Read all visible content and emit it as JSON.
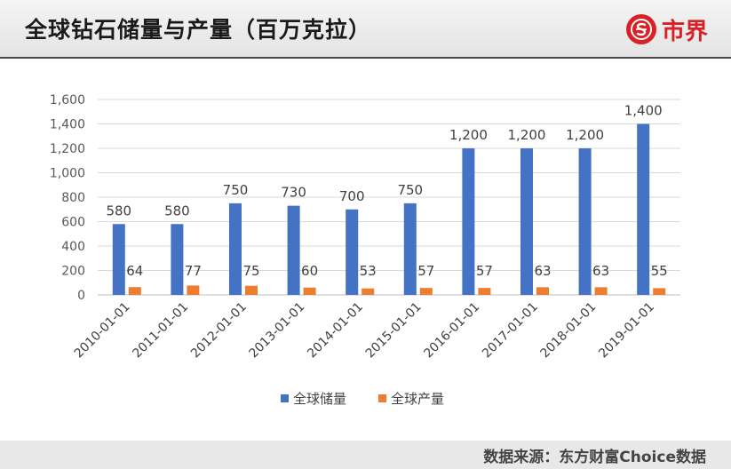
{
  "header": {
    "title": "全球钻石储量与产量（百万克拉）",
    "brand": "市界"
  },
  "footer": {
    "source": "数据来源：东方财富Choice数据"
  },
  "colors": {
    "reserves": "#4472c4",
    "production": "#ed7d31",
    "brand": "#d92024"
  },
  "chart_data": {
    "type": "bar",
    "title": "全球钻石储量与产量（百万克拉）",
    "categories": [
      "2010-01-01",
      "2011-01-01",
      "2012-01-01",
      "2013-01-01",
      "2014-01-01",
      "2015-01-01",
      "2016-01-01",
      "2017-01-01",
      "2018-01-01",
      "2019-01-01"
    ],
    "series": [
      {
        "name": "全球储量",
        "values": [
          580,
          580,
          750,
          730,
          700,
          750,
          1200,
          1200,
          1200,
          1400
        ]
      },
      {
        "name": "全球产量",
        "values": [
          64,
          77,
          75,
          60,
          53,
          57,
          57,
          63,
          63,
          55
        ]
      }
    ],
    "ylim": [
      0,
      1600
    ],
    "yticks": [
      0,
      200,
      400,
      600,
      800,
      1000,
      1200,
      1400,
      1600
    ],
    "ytick_labels": [
      "0",
      "200",
      "400",
      "600",
      "800",
      "1,000",
      "1,200",
      "1,400",
      "1,600"
    ],
    "grid": true,
    "legend": "bottom"
  }
}
